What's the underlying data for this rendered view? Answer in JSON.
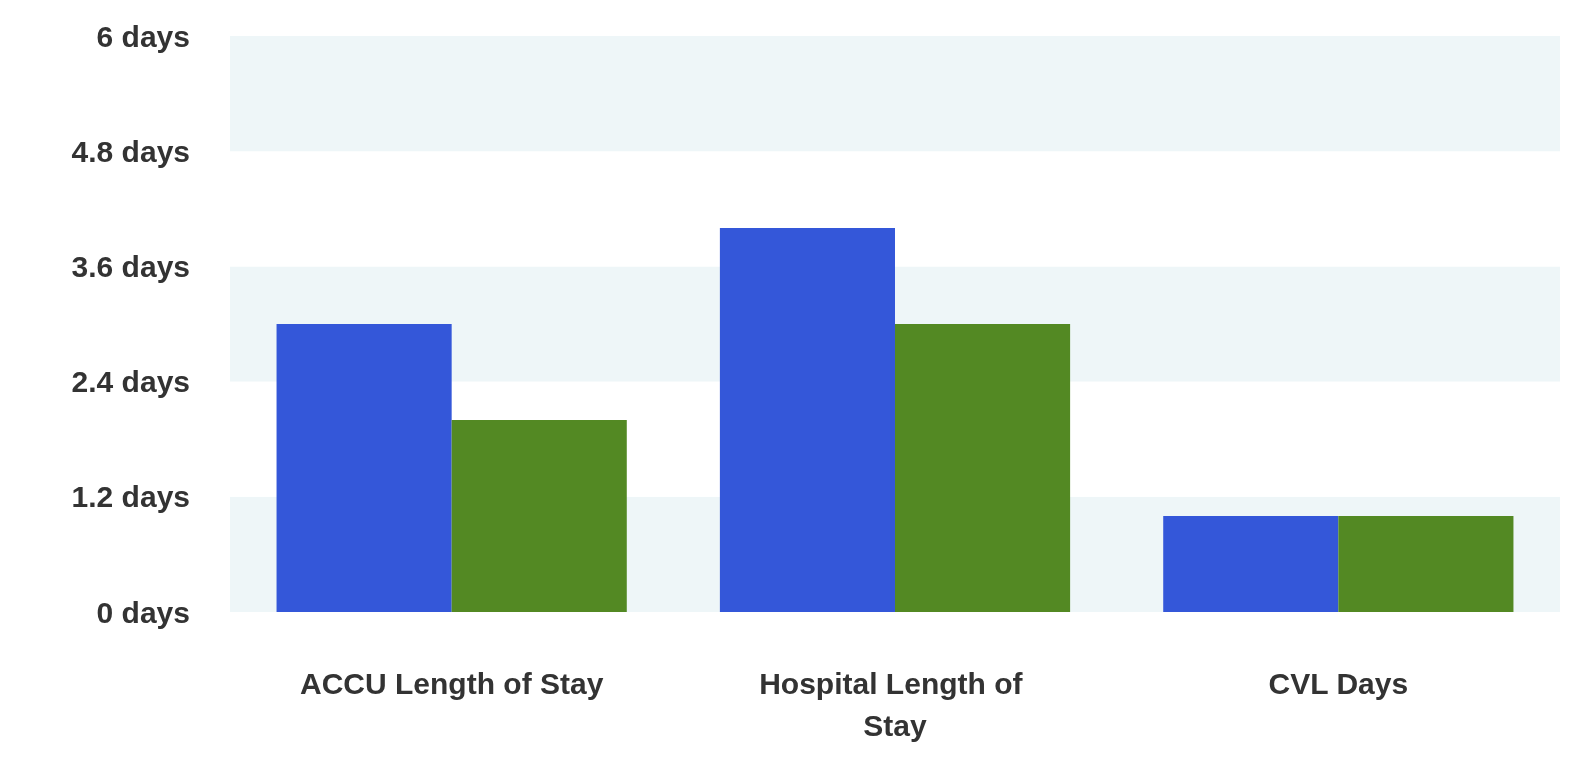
{
  "chart_data": {
    "type": "bar",
    "categories": [
      "ACCU Length of Stay",
      "Hospital Length of Stay",
      "CVL Days"
    ],
    "series": [
      {
        "color": "#3457d9",
        "values": [
          3,
          4,
          1
        ]
      },
      {
        "color": "#538923",
        "values": [
          2,
          3,
          1
        ]
      }
    ],
    "ylim": [
      0,
      6
    ],
    "yticks": [
      {
        "value": 0,
        "label": "0 days"
      },
      {
        "value": 1.2,
        "label": "1.2 days"
      },
      {
        "value": 2.4,
        "label": "2.4 days"
      },
      {
        "value": 3.6,
        "label": "3.6 days"
      },
      {
        "value": 4.8,
        "label": "4.8 days"
      },
      {
        "value": 6,
        "label": "6 days"
      }
    ],
    "stacked": false
  }
}
